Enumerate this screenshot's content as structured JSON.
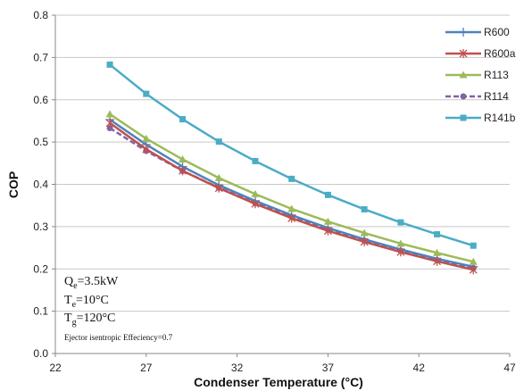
{
  "chart_data": {
    "type": "line",
    "xlabel": "Condenser Temperature (°C)",
    "ylabel": "COP",
    "xlim": [
      22,
      47
    ],
    "ylim": [
      0,
      0.8
    ],
    "x_ticks": [
      "22",
      "27",
      "32",
      "37",
      "42",
      "47"
    ],
    "y_ticks": [
      "0.0",
      "0.1",
      "0.2",
      "0.3",
      "0.4",
      "0.5",
      "0.6",
      "0.7",
      "0.8"
    ],
    "x_tick_values": [
      22,
      27,
      32,
      37,
      42,
      47
    ],
    "y_tick_values": [
      0,
      0.1,
      0.2,
      0.3,
      0.4,
      0.5,
      0.6,
      0.7,
      0.8
    ],
    "grid": "horizontal",
    "legend_position": "top-right",
    "x": [
      25,
      27,
      29,
      31,
      33,
      35,
      37,
      39,
      41,
      43,
      45
    ],
    "series": [
      {
        "name": "R600",
        "color": "#4F81BD",
        "marker": "plus",
        "dashed": false,
        "values": [
          0.553,
          0.494,
          0.442,
          0.398,
          0.361,
          0.327,
          0.297,
          0.27,
          0.246,
          0.224,
          0.205
        ]
      },
      {
        "name": "R600a",
        "color": "#C0504D",
        "marker": "star",
        "dashed": false,
        "values": [
          0.545,
          0.483,
          0.432,
          0.391,
          0.354,
          0.32,
          0.29,
          0.264,
          0.24,
          0.218,
          0.198
        ]
      },
      {
        "name": "R113",
        "color": "#9BBB59",
        "marker": "triangle",
        "dashed": false,
        "values": [
          0.566,
          0.508,
          0.459,
          0.415,
          0.377,
          0.342,
          0.312,
          0.285,
          0.26,
          0.238,
          0.217
        ]
      },
      {
        "name": "R114",
        "color": "#8064A2",
        "marker": "circle",
        "dashed": true,
        "values": [
          0.533,
          0.479,
          0.432,
          0.392,
          0.356,
          0.323,
          0.293,
          0.267,
          0.243,
          0.221,
          0.202
        ]
      },
      {
        "name": "R141b",
        "color": "#4BACC6",
        "marker": "square",
        "dashed": false,
        "values": [
          0.683,
          0.614,
          0.554,
          0.501,
          0.455,
          0.413,
          0.375,
          0.341,
          0.31,
          0.282,
          0.255
        ]
      }
    ],
    "annotations": {
      "qe_main": "Q",
      "qe_sub": "e",
      "qe_rest": "=3.5kW",
      "te_main": "T",
      "te_sub": "e",
      "te_rest": "=10°C",
      "tg_main": "T",
      "tg_sub": "g",
      "tg_rest": "=120°C",
      "ejector": "Ejector isentropic  Effeciency=0.7"
    }
  }
}
